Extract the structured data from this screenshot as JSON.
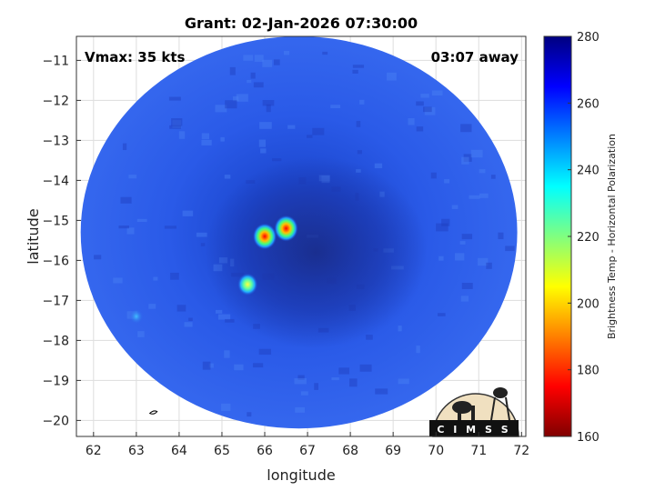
{
  "title": "Grant: 02-Jan-2026 07:30:00",
  "overlay": {
    "vmax": "Vmax: 35 kts",
    "time_away": "03:07 away"
  },
  "logo_text": "C I M S S",
  "colors": {
    "cmap": [
      "#800000",
      "#ff0000",
      "#ff8000",
      "#ffff00",
      "#80ff80",
      "#00ffff",
      "#0080ff",
      "#0000ff",
      "#000080"
    ],
    "bg": "#2e5fe6",
    "eye": "#102070"
  },
  "chart_data": {
    "type": "heatmap",
    "title": "Grant: 02-Jan-2026 07:30:00",
    "xlabel": "longitude",
    "ylabel": "latitude",
    "xlim": [
      61.6,
      72.1
    ],
    "ylim": [
      -20.4,
      -10.4
    ],
    "x_ticks": [
      62,
      63,
      64,
      65,
      66,
      67,
      68,
      69,
      70,
      71,
      72
    ],
    "y_ticks": [
      -11,
      -12,
      -13,
      -14,
      -15,
      -16,
      -17,
      -18,
      -19,
      -20
    ],
    "grid": true,
    "colorbar": {
      "label": "Brightness Temp - Horizontal Polarization",
      "range": [
        160,
        280
      ],
      "ticks": [
        280,
        260,
        240,
        220,
        200,
        180,
        160
      ]
    },
    "swath": {
      "center_lon": 66.8,
      "center_lat": -15.3,
      "radius_lon": 5.1,
      "radius_lat": 4.9
    },
    "features": [
      {
        "lon": 66.0,
        "lat": -15.4,
        "value": 170
      },
      {
        "lon": 66.5,
        "lat": -15.2,
        "value": 185
      },
      {
        "lon": 65.6,
        "lat": -16.6,
        "value": 220
      },
      {
        "lon": 63.0,
        "lat": -17.4,
        "value": 245
      }
    ]
  }
}
